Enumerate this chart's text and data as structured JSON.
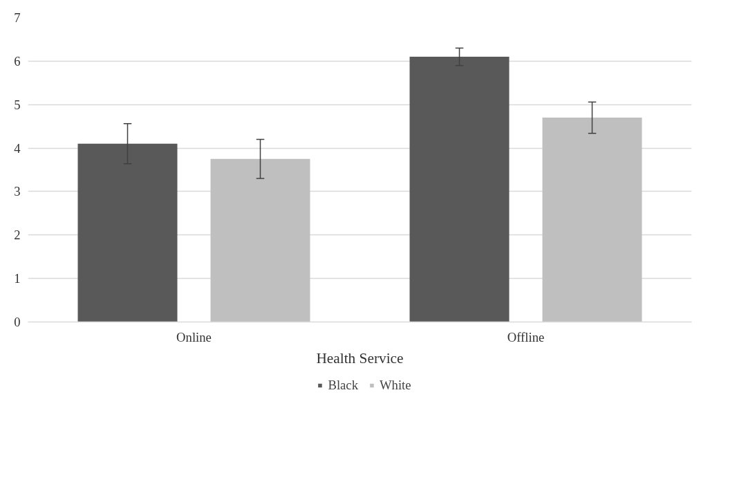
{
  "chart_data": {
    "type": "bar",
    "xlabel": "Health Service",
    "categories": [
      "Online",
      "Offline"
    ],
    "series": [
      {
        "name": "Black",
        "color": "#595959",
        "values": [
          4.1,
          6.1
        ],
        "errors": [
          0.46,
          0.2
        ]
      },
      {
        "name": "White",
        "color": "#bfbfbf",
        "values": [
          3.75,
          4.7
        ],
        "errors": [
          0.45,
          0.36
        ]
      }
    ],
    "ylim": [
      0,
      7
    ],
    "yticks": [
      0,
      1,
      2,
      3,
      4,
      5,
      6,
      7
    ],
    "grid": "y",
    "legend": "bottom"
  }
}
